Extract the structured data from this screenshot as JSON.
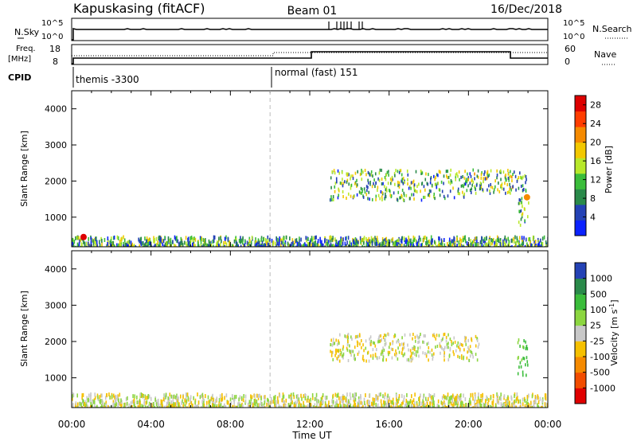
{
  "header": {
    "title": "Kapuskasing (fitACF)",
    "beam": "Beam 01",
    "date": "16/Dec/2018"
  },
  "top_panel": {
    "left_label": "N.Sky",
    "left_ticks": [
      "10^5",
      "10^0"
    ],
    "right_label": "N.Search",
    "right_ticks": [
      "10^5",
      "10^0"
    ]
  },
  "freq_panel": {
    "left_label_1": "Freq.",
    "left_label_2": "[MHz]",
    "left_ticks": [
      "18",
      "8"
    ],
    "right_label": "Nave",
    "right_ticks": [
      "60",
      "0"
    ]
  },
  "cpid": {
    "label": "CPID",
    "segments": [
      {
        "name": "themis -3300",
        "start_hour": 0
      },
      {
        "name": "normal (fast) 151",
        "start_hour": 10.0
      }
    ]
  },
  "colors": {
    "power_scale": [
      "#0b22ff",
      "#2442b5",
      "#2a8a4a",
      "#3bbd3b",
      "#b8e82a",
      "#f2c800",
      "#f58a00",
      "#ff3d00",
      "#dd0000"
    ],
    "velocity_scale": [
      "#e00000",
      "#f24d00",
      "#f58a00",
      "#f5c000",
      "#c8c8c8",
      "#8cd640",
      "#3bbd3b",
      "#2a8a4a",
      "#2442b5"
    ]
  },
  "chart_data": [
    {
      "type": "heatmap",
      "title": "",
      "xlabel": "Time UT",
      "ylabel": "Slant Range [km]",
      "xlim": [
        0,
        24
      ],
      "ylim": [
        180,
        4500
      ],
      "x_ticks": [
        "00:00",
        "04:00",
        "08:00",
        "12:00",
        "16:00",
        "20:00",
        "00:00"
      ],
      "y_ticks": [
        1000,
        2000,
        3000,
        4000
      ],
      "colorbar": {
        "label": "Power [dB]",
        "ticks": [
          4,
          8,
          12,
          16,
          20,
          24,
          28
        ],
        "range": [
          0,
          30
        ]
      },
      "features": [
        {
          "kind": "ground_scatter_band",
          "x_start": 0.0,
          "x_end": 24.0,
          "range_low": 180,
          "range_high": 500,
          "value": 10
        },
        {
          "kind": "scatter_patch",
          "x_start": 13.0,
          "x_end": 19.8,
          "range_low": 1500,
          "range_high": 2350,
          "value": 11
        },
        {
          "kind": "scatter_patch",
          "x_start": 19.8,
          "x_end": 22.9,
          "range_low": 1700,
          "range_high": 2350,
          "value": 12
        },
        {
          "kind": "scatter_patch",
          "x_start": 22.5,
          "x_end": 23.0,
          "range_low": 700,
          "range_high": 1650,
          "value": 10
        },
        {
          "kind": "point",
          "x": 0.6,
          "range": 450,
          "value": 28
        },
        {
          "kind": "point",
          "x": 22.95,
          "range": 1550,
          "value": 22
        }
      ]
    },
    {
      "type": "heatmap",
      "title": "",
      "xlabel": "Time UT",
      "ylabel": "Slant Range [km]",
      "xlim": [
        0,
        24
      ],
      "ylim": [
        180,
        4500
      ],
      "x_ticks": [
        "00:00",
        "04:00",
        "08:00",
        "12:00",
        "16:00",
        "20:00",
        "00:00"
      ],
      "y_ticks": [
        1000,
        2000,
        3000,
        4000
      ],
      "colorbar": {
        "label": "Velocity [m s^-1]",
        "ticks": [
          "1000",
          "500",
          "100",
          "25",
          "-25",
          "-100",
          "-500",
          "-1000"
        ]
      },
      "features": [
        {
          "kind": "ground_scatter_band",
          "x_start": 0.0,
          "x_end": 24.0,
          "range_low": 180,
          "range_high": 600,
          "value": 0
        },
        {
          "kind": "scatter_patch",
          "x_start": 13.0,
          "x_end": 20.5,
          "range_low": 1500,
          "range_high": 2250,
          "value": 0
        },
        {
          "kind": "scatter_patch",
          "x_start": 22.4,
          "x_end": 23.0,
          "range_low": 1100,
          "range_high": 2100,
          "value": 150
        }
      ]
    }
  ]
}
